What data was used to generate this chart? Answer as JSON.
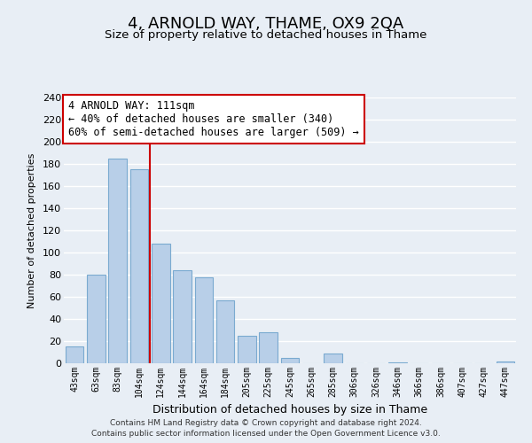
{
  "title": "4, ARNOLD WAY, THAME, OX9 2QA",
  "subtitle": "Size of property relative to detached houses in Thame",
  "xlabel": "Distribution of detached houses by size in Thame",
  "ylabel": "Number of detached properties",
  "bar_labels": [
    "43sqm",
    "63sqm",
    "83sqm",
    "104sqm",
    "124sqm",
    "144sqm",
    "164sqm",
    "184sqm",
    "205sqm",
    "225sqm",
    "245sqm",
    "265sqm",
    "285sqm",
    "306sqm",
    "326sqm",
    "346sqm",
    "366sqm",
    "386sqm",
    "407sqm",
    "427sqm",
    "447sqm"
  ],
  "bar_values": [
    15,
    80,
    185,
    175,
    108,
    84,
    78,
    57,
    25,
    28,
    5,
    0,
    9,
    0,
    0,
    1,
    0,
    0,
    0,
    0,
    2
  ],
  "bar_color": "#b8cfe8",
  "bar_edge_color": "#7aaad0",
  "vline_color": "#cc0000",
  "annotation_text": "4 ARNOLD WAY: 111sqm\n← 40% of detached houses are smaller (340)\n60% of semi-detached houses are larger (509) →",
  "ylim": [
    0,
    240
  ],
  "yticks": [
    0,
    20,
    40,
    60,
    80,
    100,
    120,
    140,
    160,
    180,
    200,
    220,
    240
  ],
  "footer_line1": "Contains HM Land Registry data © Crown copyright and database right 2024.",
  "footer_line2": "Contains public sector information licensed under the Open Government Licence v3.0.",
  "bg_color": "#e8eef5",
  "plot_bg_color": "#e8eef5",
  "grid_color": "#ffffff",
  "title_fontsize": 13,
  "subtitle_fontsize": 9.5
}
